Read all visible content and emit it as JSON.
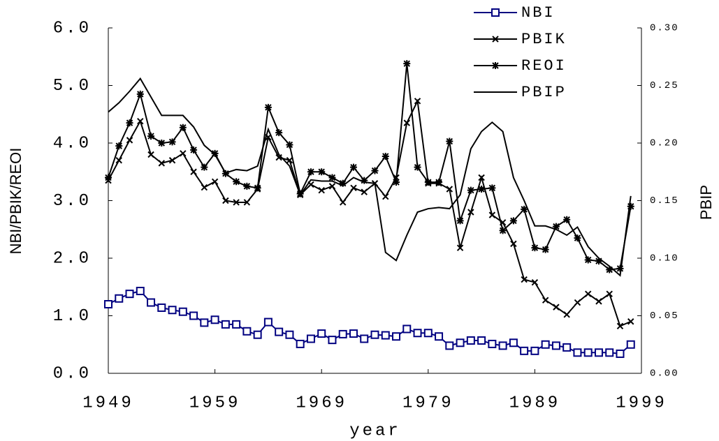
{
  "chart_data": {
    "type": "line",
    "x_label": "year",
    "y_label": "NBI/PBIK/REOI",
    "y2_label": "PBIP",
    "x": [
      1949,
      1950,
      1951,
      1952,
      1953,
      1954,
      1955,
      1956,
      1957,
      1958,
      1959,
      1960,
      1961,
      1962,
      1963,
      1964,
      1965,
      1966,
      1967,
      1968,
      1969,
      1970,
      1971,
      1972,
      1973,
      1974,
      1975,
      1976,
      1977,
      1978,
      1979,
      1980,
      1981,
      1982,
      1983,
      1984,
      1985,
      1986,
      1987,
      1988,
      1989,
      1990,
      1991,
      1992,
      1993,
      1994,
      1995,
      1996,
      1997,
      1998
    ],
    "xlim": [
      1949,
      1999
    ],
    "xticks": [
      1949,
      1959,
      1969,
      1979,
      1989,
      1999
    ],
    "ylim": [
      0,
      6
    ],
    "yticks": [
      {
        "value": 0,
        "label": "0.0"
      },
      {
        "value": 1,
        "label": "1.0"
      },
      {
        "value": 2,
        "label": "2.0"
      },
      {
        "value": 3,
        "label": "3.0"
      },
      {
        "value": 4,
        "label": "4.0"
      },
      {
        "value": 5,
        "label": "5.0"
      },
      {
        "value": 6,
        "label": "6.0"
      }
    ],
    "y2lim": [
      0,
      0.3
    ],
    "y2ticks": [
      {
        "value": 0,
        "label": "0.00"
      },
      {
        "value": 0.05,
        "label": "0.05"
      },
      {
        "value": 0.1,
        "label": "0.10"
      },
      {
        "value": 0.15,
        "label": "0.15"
      },
      {
        "value": 0.2,
        "label": "0.20"
      },
      {
        "value": 0.25,
        "label": "0.25"
      },
      {
        "value": 0.3,
        "label": "0.30"
      }
    ],
    "legend": "top-right",
    "series": [
      {
        "name": "NBI",
        "color": "#000080",
        "marker": "square",
        "values": [
          1.2,
          1.3,
          1.38,
          1.43,
          1.23,
          1.14,
          1.1,
          1.07,
          1.0,
          0.88,
          0.93,
          0.85,
          0.85,
          0.73,
          0.67,
          0.89,
          0.72,
          0.67,
          0.51,
          0.6,
          0.69,
          0.58,
          0.68,
          0.69,
          0.6,
          0.67,
          0.66,
          0.64,
          0.77,
          0.7,
          0.7,
          0.64,
          0.48,
          0.53,
          0.57,
          0.57,
          0.51,
          0.48,
          0.53,
          0.39,
          0.39,
          0.5,
          0.48,
          0.45,
          0.36,
          0.36,
          0.36,
          0.36,
          0.34,
          0.5
        ]
      },
      {
        "name": "PBIK",
        "color": "#000000",
        "marker": "x",
        "values": [
          3.35,
          3.7,
          4.05,
          4.38,
          3.8,
          3.65,
          3.7,
          3.82,
          3.5,
          3.23,
          3.33,
          3.0,
          2.97,
          2.97,
          3.2,
          4.1,
          3.75,
          3.7,
          3.1,
          3.28,
          3.18,
          3.25,
          2.97,
          3.22,
          3.15,
          3.3,
          3.07,
          3.4,
          4.35,
          4.73,
          3.3,
          3.3,
          3.2,
          2.18,
          2.8,
          3.4,
          2.75,
          2.62,
          2.25,
          1.63,
          1.58,
          1.27,
          1.15,
          1.02,
          1.23,
          1.38,
          1.25,
          1.38,
          0.82,
          0.9
        ]
      },
      {
        "name": "REOI",
        "color": "#000000",
        "marker": "asterisk",
        "values": [
          3.4,
          3.95,
          4.35,
          4.85,
          4.12,
          4.0,
          4.02,
          4.27,
          3.88,
          3.58,
          3.82,
          3.47,
          3.33,
          3.25,
          3.22,
          4.62,
          4.18,
          3.97,
          3.12,
          3.5,
          3.5,
          3.4,
          3.3,
          3.58,
          3.35,
          3.52,
          3.77,
          3.32,
          5.38,
          3.58,
          3.32,
          3.32,
          4.03,
          2.65,
          3.18,
          3.2,
          3.22,
          2.48,
          2.65,
          2.85,
          2.18,
          2.15,
          2.55,
          2.67,
          2.35,
          1.97,
          1.95,
          1.8,
          1.82,
          2.9
        ]
      },
      {
        "name": "PBIP",
        "color": "#000000",
        "marker": "none",
        "axis": "y2",
        "values": [
          0.227,
          0.235,
          0.245,
          0.256,
          0.24,
          0.224,
          0.224,
          0.224,
          0.214,
          0.198,
          0.19,
          0.174,
          0.177,
          0.176,
          0.18,
          0.212,
          0.19,
          0.18,
          0.155,
          0.168,
          0.167,
          0.167,
          0.163,
          0.17,
          0.166,
          0.165,
          0.105,
          0.098,
          0.12,
          0.14,
          0.143,
          0.144,
          0.143,
          0.155,
          0.195,
          0.21,
          0.218,
          0.21,
          0.17,
          0.15,
          0.128,
          0.128,
          0.125,
          0.12,
          0.127,
          0.11,
          0.1,
          0.093,
          0.085,
          0.154
        ]
      }
    ]
  }
}
